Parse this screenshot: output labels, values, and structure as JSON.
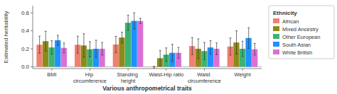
{
  "chart_data": {
    "type": "bar",
    "xlabel": "Various anthropometrical traits",
    "ylabel": "Estimated heritability",
    "categories": [
      "BMI",
      "Hip circumference",
      "Standing height",
      "Waist-Hip ratio",
      "Waist circumference",
      "Weight"
    ],
    "series": [
      {
        "name": "African",
        "color": "#F08070",
        "values": [
          0.245,
          0.245,
          0.248,
          -0.005,
          0.23,
          0.225
        ],
        "errors": [
          0.095,
          0.095,
          0.09,
          0.01,
          0.095,
          0.095
        ]
      },
      {
        "name": "Mixed Ancestry",
        "color": "#8B8B1A",
        "values": [
          0.285,
          0.237,
          0.325,
          0.095,
          0.2,
          0.27
        ],
        "errors": [
          0.11,
          0.13,
          0.06,
          0.085,
          0.11,
          0.13
        ]
      },
      {
        "name": "Other European",
        "color": "#3CB371",
        "values": [
          0.215,
          0.195,
          0.49,
          0.135,
          0.175,
          0.2
        ],
        "errors": [
          0.075,
          0.085,
          0.085,
          0.075,
          0.095,
          0.085
        ]
      },
      {
        "name": "South Asian",
        "color": "#1E90FF",
        "values": [
          0.295,
          0.2,
          0.51,
          0.155,
          0.215,
          0.32
        ],
        "errors": [
          0.055,
          0.095,
          0.09,
          0.095,
          0.075,
          0.115
        ]
      },
      {
        "name": "White British",
        "color": "#DA70D6",
        "values": [
          0.21,
          0.2,
          0.51,
          0.155,
          0.2,
          0.195
        ],
        "errors": [
          0.055,
          0.07,
          0.03,
          0.06,
          0.065,
          0.065
        ]
      }
    ],
    "ylim": [
      -0.02,
      0.68
    ],
    "yticks": [
      {
        "value": 0.0,
        "label": "0.0"
      },
      0.2,
      0.4,
      0.6
    ],
    "legend": "right",
    "legend_title": "Ethnicity"
  }
}
